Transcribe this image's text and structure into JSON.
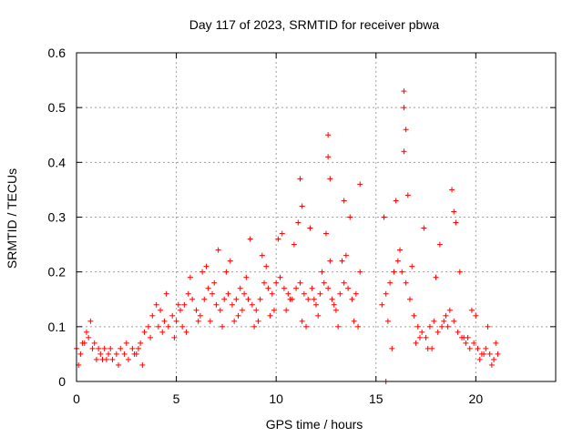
{
  "chart_data": {
    "type": "scatter",
    "title": "Day 117 of 2023, SRMTID for receiver pbwa",
    "xlabel": "GPS time / hours",
    "ylabel": "SRMTID / TECUs",
    "xlim": [
      0,
      24
    ],
    "ylim": [
      0,
      0.6
    ],
    "x_ticks": [
      0,
      5,
      10,
      15,
      20
    ],
    "x_tick_labels": [
      "0",
      "5",
      "10",
      "15",
      "20"
    ],
    "y_ticks": [
      0,
      0.1,
      0.2,
      0.3,
      0.4,
      0.5,
      0.6
    ],
    "y_tick_labels": [
      "0",
      "0.1",
      "0.2",
      "0.3",
      "0.4",
      "0.5",
      "0.6"
    ],
    "grid": true,
    "marker": "+",
    "color": "#ff0000",
    "series": [
      {
        "name": "SRMTID",
        "x": [
          0.0,
          0.2,
          0.4,
          0.6,
          0.8,
          1.0,
          1.2,
          1.4,
          1.6,
          1.8,
          2.0,
          2.2,
          2.4,
          2.6,
          2.8,
          3.0,
          3.2,
          3.4,
          3.6,
          3.8,
          4.0,
          4.2,
          4.4,
          4.6,
          4.8,
          5.0,
          5.2,
          5.4,
          5.6,
          5.8,
          6.0,
          6.2,
          6.4,
          6.6,
          6.8,
          7.0,
          7.2,
          7.4,
          7.6,
          7.8,
          8.0,
          8.2,
          8.4,
          8.6,
          8.8,
          9.0,
          9.2,
          9.4,
          9.6,
          9.8,
          10.0,
          10.2,
          10.4,
          10.6,
          10.8,
          11.0,
          11.2,
          11.4,
          11.6,
          11.8,
          12.0,
          12.2,
          12.4,
          12.6,
          12.8,
          13.0,
          13.2,
          13.4,
          13.6,
          13.8,
          14.0,
          14.2,
          15.3,
          15.5,
          15.7,
          15.9,
          16.1,
          16.3,
          16.5,
          16.7,
          16.9,
          17.1,
          17.3,
          17.5,
          17.7,
          17.9,
          18.1,
          18.3,
          18.5,
          18.7,
          18.9,
          19.1,
          19.3,
          19.5,
          19.7,
          19.9,
          20.1,
          20.3,
          20.5,
          20.7,
          20.9,
          21.1,
          0.1,
          0.5,
          0.9,
          1.3,
          1.7,
          2.1,
          2.5,
          2.9,
          3.3,
          3.7,
          4.1,
          4.5,
          4.9,
          5.3,
          5.7,
          6.1,
          6.5,
          6.9,
          7.3,
          7.7,
          8.1,
          8.5,
          8.9,
          9.3,
          9.7,
          10.1,
          10.5,
          10.9,
          11.3,
          11.7,
          12.1,
          12.5,
          12.9,
          13.3,
          13.7,
          14.1,
          15.4,
          15.8,
          16.2,
          16.6,
          17.0,
          17.4,
          17.8,
          18.2,
          18.6,
          19.0,
          19.4,
          19.8,
          20.2,
          20.6,
          21.0,
          12.6,
          12.6,
          12.7,
          16.4,
          16.4,
          16.5,
          16.4,
          11.2,
          11.3,
          13.4,
          14.2,
          18.8,
          18.9,
          15.5,
          0.3,
          0.7,
          1.1,
          1.5,
          3.1,
          4.3,
          5.1,
          5.5,
          6.3,
          6.7,
          7.1,
          7.5,
          7.9,
          8.3,
          8.7,
          9.1,
          9.5,
          9.9,
          10.3,
          10.7,
          11.1,
          11.5,
          11.9,
          12.3,
          12.7,
          13.1,
          13.5,
          13.9,
          15.6,
          16.0,
          16.8,
          17.2,
          17.6,
          18.0,
          18.4,
          19.2,
          19.6,
          20.0,
          20.4,
          20.8
        ],
        "y": [
          0.06,
          0.05,
          0.07,
          0.08,
          0.06,
          0.04,
          0.05,
          0.06,
          0.05,
          0.04,
          0.05,
          0.06,
          0.05,
          0.04,
          0.06,
          0.05,
          0.07,
          0.09,
          0.1,
          0.12,
          0.14,
          0.13,
          0.11,
          0.1,
          0.12,
          0.11,
          0.13,
          0.14,
          0.16,
          0.15,
          0.13,
          0.12,
          0.15,
          0.17,
          0.16,
          0.14,
          0.13,
          0.15,
          0.16,
          0.14,
          0.15,
          0.17,
          0.16,
          0.15,
          0.14,
          0.13,
          0.15,
          0.18,
          0.17,
          0.16,
          0.18,
          0.19,
          0.17,
          0.16,
          0.15,
          0.17,
          0.18,
          0.16,
          0.15,
          0.17,
          0.14,
          0.16,
          0.18,
          0.17,
          0.15,
          0.13,
          0.16,
          0.18,
          0.17,
          0.15,
          0.16,
          0.2,
          0.14,
          0.16,
          0.18,
          0.2,
          0.22,
          0.2,
          0.18,
          0.15,
          0.12,
          0.1,
          0.09,
          0.08,
          0.1,
          0.11,
          0.09,
          0.1,
          0.12,
          0.13,
          0.11,
          0.09,
          0.08,
          0.07,
          0.06,
          0.07,
          0.06,
          0.05,
          0.06,
          0.05,
          0.04,
          0.05,
          0.03,
          0.09,
          0.07,
          0.04,
          0.06,
          0.03,
          0.07,
          0.05,
          0.03,
          0.08,
          0.1,
          0.16,
          0.08,
          0.1,
          0.19,
          0.11,
          0.21,
          0.18,
          0.1,
          0.22,
          0.12,
          0.19,
          0.1,
          0.23,
          0.12,
          0.26,
          0.13,
          0.25,
          0.11,
          0.28,
          0.12,
          0.27,
          0.14,
          0.22,
          0.3,
          0.1,
          0.3,
          0.06,
          0.24,
          0.34,
          0.07,
          0.28,
          0.06,
          0.25,
          0.1,
          0.29,
          0.08,
          0.13,
          0.04,
          0.1,
          0.07,
          0.45,
          0.41,
          0.37,
          0.53,
          0.5,
          0.46,
          0.42,
          0.37,
          0.32,
          0.33,
          0.36,
          0.35,
          0.31,
          0.0,
          0.07,
          0.11,
          0.06,
          0.04,
          0.06,
          0.09,
          0.14,
          0.09,
          0.2,
          0.11,
          0.24,
          0.2,
          0.11,
          0.13,
          0.26,
          0.11,
          0.21,
          0.13,
          0.27,
          0.15,
          0.29,
          0.1,
          0.15,
          0.2,
          0.22,
          0.1,
          0.23,
          0.11,
          0.11,
          0.33,
          0.21,
          0.08,
          0.06,
          0.19,
          0.11,
          0.2,
          0.08,
          0.12,
          0.05,
          0.03
        ]
      }
    ]
  }
}
